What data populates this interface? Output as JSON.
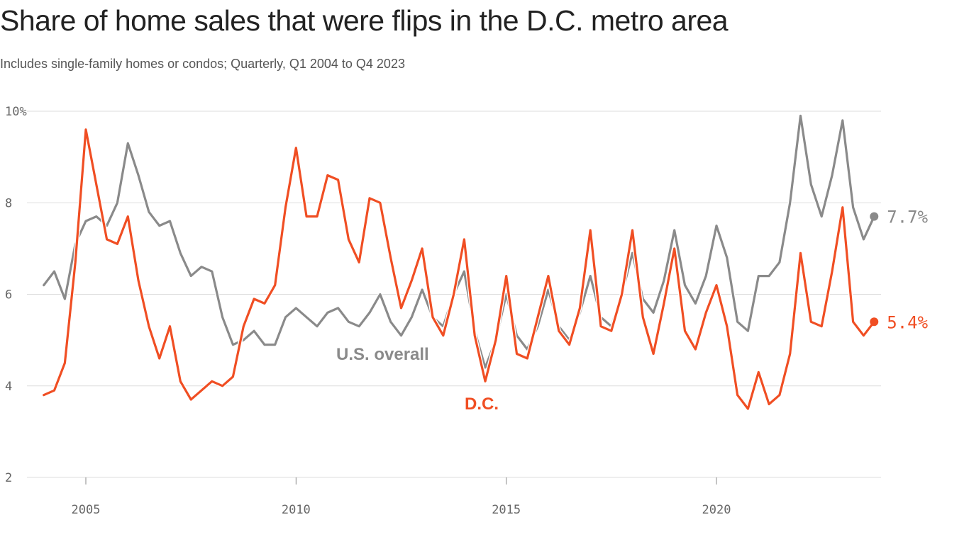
{
  "header": {
    "title": "Share of home sales that were flips in the D.C. metro area",
    "subtitle": "Includes single-family homes or condos; Quarterly, Q1 2004 to Q4 2023"
  },
  "colors": {
    "us": "#8a8a8a",
    "dc": "#f04e23",
    "grid": "#dddddd",
    "text": "#222222"
  },
  "chart_data": {
    "type": "line",
    "title": "Share of home sales that were flips in the D.C. metro area",
    "subtitle": "Includes single-family homes or condos; Quarterly, Q1 2004 to Q4 2023",
    "xlabel": "",
    "ylabel": "",
    "ylim": [
      2,
      10
    ],
    "yticks": [
      2,
      4,
      6,
      8,
      10
    ],
    "ytick_labels": [
      "2",
      "4",
      "6",
      "8",
      "10%"
    ],
    "xticks": [
      2005,
      2010,
      2015,
      2020
    ],
    "xtick_labels": [
      "2005",
      "2010",
      "2015",
      "2020"
    ],
    "grid": true,
    "x": [
      "2004 Q1",
      "2004 Q2",
      "2004 Q3",
      "2004 Q4",
      "2005 Q1",
      "2005 Q2",
      "2005 Q3",
      "2005 Q4",
      "2006 Q1",
      "2006 Q2",
      "2006 Q3",
      "2006 Q4",
      "2007 Q1",
      "2007 Q2",
      "2007 Q3",
      "2007 Q4",
      "2008 Q1",
      "2008 Q2",
      "2008 Q3",
      "2008 Q4",
      "2009 Q1",
      "2009 Q2",
      "2009 Q3",
      "2009 Q4",
      "2010 Q1",
      "2010 Q2",
      "2010 Q3",
      "2010 Q4",
      "2011 Q1",
      "2011 Q2",
      "2011 Q3",
      "2011 Q4",
      "2012 Q1",
      "2012 Q2",
      "2012 Q3",
      "2012 Q4",
      "2013 Q1",
      "2013 Q2",
      "2013 Q3",
      "2013 Q4",
      "2014 Q1",
      "2014 Q2",
      "2014 Q3",
      "2014 Q4",
      "2015 Q1",
      "2015 Q2",
      "2015 Q3",
      "2015 Q4",
      "2016 Q1",
      "2016 Q2",
      "2016 Q3",
      "2016 Q4",
      "2017 Q1",
      "2017 Q2",
      "2017 Q3",
      "2017 Q4",
      "2018 Q1",
      "2018 Q2",
      "2018 Q3",
      "2018 Q4",
      "2019 Q1",
      "2019 Q2",
      "2019 Q3",
      "2019 Q4",
      "2020 Q1",
      "2020 Q2",
      "2020 Q3",
      "2020 Q4",
      "2021 Q1",
      "2021 Q2",
      "2021 Q3",
      "2021 Q4",
      "2022 Q1",
      "2022 Q2",
      "2022 Q3",
      "2022 Q4",
      "2023 Q1",
      "2023 Q2",
      "2023 Q3",
      "2023 Q4"
    ],
    "series": [
      {
        "name": "U.S. overall",
        "end_label": "7.7%",
        "values": [
          6.2,
          6.5,
          5.9,
          7.1,
          7.6,
          7.7,
          7.5,
          8.0,
          9.3,
          8.6,
          7.8,
          7.5,
          7.6,
          6.9,
          6.4,
          6.6,
          6.5,
          5.5,
          4.9,
          5.0,
          5.2,
          4.9,
          4.9,
          5.5,
          5.7,
          5.5,
          5.3,
          5.6,
          5.7,
          5.4,
          5.3,
          5.6,
          6.0,
          5.4,
          5.1,
          5.5,
          6.1,
          5.5,
          5.3,
          6.0,
          6.5,
          5.2,
          4.4,
          5.0,
          6.0,
          5.1,
          4.8,
          5.3,
          6.1,
          5.3,
          5.0,
          5.6,
          6.4,
          5.5,
          5.3,
          6.0,
          6.9,
          5.9,
          5.6,
          6.3,
          7.4,
          6.2,
          5.8,
          6.4,
          7.5,
          6.8,
          5.4,
          5.2,
          6.4,
          6.4,
          6.7,
          8.0,
          9.9,
          8.4,
          7.7,
          8.6,
          9.8,
          7.9,
          7.2,
          7.7
        ]
      },
      {
        "name": "D.C.",
        "end_label": "5.4%",
        "values": [
          3.8,
          3.9,
          4.5,
          6.7,
          9.6,
          8.4,
          7.2,
          7.1,
          7.7,
          6.3,
          5.3,
          4.6,
          5.3,
          4.1,
          3.7,
          3.9,
          4.1,
          4.0,
          4.2,
          5.3,
          5.9,
          5.8,
          6.2,
          7.9,
          9.2,
          7.7,
          7.7,
          8.6,
          8.5,
          7.2,
          6.7,
          8.1,
          8.0,
          6.8,
          5.7,
          6.3,
          7.0,
          5.5,
          5.1,
          6.0,
          7.2,
          5.1,
          4.1,
          5.0,
          6.4,
          4.7,
          4.6,
          5.5,
          6.4,
          5.2,
          4.9,
          5.7,
          7.4,
          5.3,
          5.2,
          6.0,
          7.4,
          5.5,
          4.7,
          5.8,
          7.0,
          5.2,
          4.8,
          5.6,
          6.2,
          5.3,
          3.8,
          3.5,
          4.3,
          3.6,
          3.8,
          4.7,
          6.9,
          5.4,
          5.3,
          6.5,
          7.9,
          5.4,
          5.1,
          5.4
        ]
      }
    ],
    "annotations": [
      "U.S. overall",
      "D.C."
    ]
  }
}
